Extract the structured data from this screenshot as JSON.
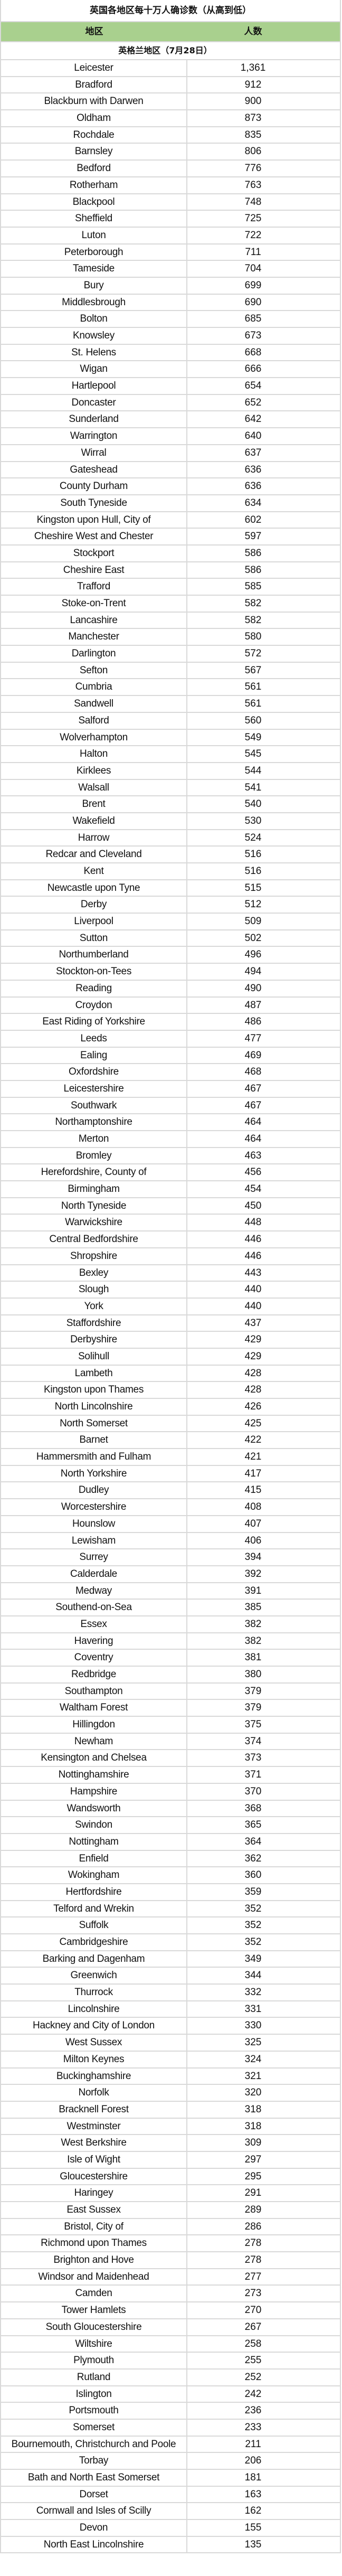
{
  "title": "英国各地区每十万人确诊数（从高到低）",
  "header": {
    "region": "地区",
    "count": "人数"
  },
  "section": "英格兰地区（7月28日）",
  "header_color": "#a9d08e",
  "rows": [
    [
      "Leicester",
      "1,361"
    ],
    [
      "Bradford",
      "912"
    ],
    [
      "Blackburn with Darwen",
      "900"
    ],
    [
      "Oldham",
      "873"
    ],
    [
      "Rochdale",
      "835"
    ],
    [
      "Barnsley",
      "806"
    ],
    [
      "Bedford",
      "776"
    ],
    [
      "Rotherham",
      "763"
    ],
    [
      "Blackpool",
      "748"
    ],
    [
      "Sheffield",
      "725"
    ],
    [
      "Luton",
      "722"
    ],
    [
      "Peterborough",
      "711"
    ],
    [
      "Tameside",
      "704"
    ],
    [
      "Bury",
      "699"
    ],
    [
      "Middlesbrough",
      "690"
    ],
    [
      "Bolton",
      "685"
    ],
    [
      "Knowsley",
      "673"
    ],
    [
      "St. Helens",
      "668"
    ],
    [
      "Wigan",
      "666"
    ],
    [
      "Hartlepool",
      "654"
    ],
    [
      "Doncaster",
      "652"
    ],
    [
      "Sunderland",
      "642"
    ],
    [
      "Warrington",
      "640"
    ],
    [
      "Wirral",
      "637"
    ],
    [
      "Gateshead",
      "636"
    ],
    [
      "County Durham",
      "636"
    ],
    [
      "South Tyneside",
      "634"
    ],
    [
      "Kingston upon Hull, City of",
      "602"
    ],
    [
      "Cheshire West and Chester",
      "597"
    ],
    [
      "Stockport",
      "586"
    ],
    [
      "Cheshire East",
      "586"
    ],
    [
      "Trafford",
      "585"
    ],
    [
      "Stoke-on-Trent",
      "582"
    ],
    [
      "Lancashire",
      "582"
    ],
    [
      "Manchester",
      "580"
    ],
    [
      "Darlington",
      "572"
    ],
    [
      "Sefton",
      "567"
    ],
    [
      "Cumbria",
      "561"
    ],
    [
      "Sandwell",
      "561"
    ],
    [
      "Salford",
      "560"
    ],
    [
      "Wolverhampton",
      "549"
    ],
    [
      "Halton",
      "545"
    ],
    [
      "Kirklees",
      "544"
    ],
    [
      "Walsall",
      "541"
    ],
    [
      "Brent",
      "540"
    ],
    [
      "Wakefield",
      "530"
    ],
    [
      "Harrow",
      "524"
    ],
    [
      "Redcar and Cleveland",
      "516"
    ],
    [
      "Kent",
      "516"
    ],
    [
      "Newcastle upon Tyne",
      "515"
    ],
    [
      "Derby",
      "512"
    ],
    [
      "Liverpool",
      "509"
    ],
    [
      "Sutton",
      "502"
    ],
    [
      "Northumberland",
      "496"
    ],
    [
      "Stockton-on-Tees",
      "494"
    ],
    [
      "Reading",
      "490"
    ],
    [
      "Croydon",
      "487"
    ],
    [
      "East Riding of Yorkshire",
      "486"
    ],
    [
      "Leeds",
      "477"
    ],
    [
      "Ealing",
      "469"
    ],
    [
      "Oxfordshire",
      "468"
    ],
    [
      "Leicestershire",
      "467"
    ],
    [
      "Southwark",
      "467"
    ],
    [
      "Northamptonshire",
      "464"
    ],
    [
      "Merton",
      "464"
    ],
    [
      "Bromley",
      "463"
    ],
    [
      "Herefordshire, County of",
      "456"
    ],
    [
      "Birmingham",
      "454"
    ],
    [
      "North Tyneside",
      "450"
    ],
    [
      "Warwickshire",
      "448"
    ],
    [
      "Central Bedfordshire",
      "446"
    ],
    [
      "Shropshire",
      "446"
    ],
    [
      "Bexley",
      "443"
    ],
    [
      "Slough",
      "440"
    ],
    [
      "York",
      "440"
    ],
    [
      "Staffordshire",
      "437"
    ],
    [
      "Derbyshire",
      "429"
    ],
    [
      "Solihull",
      "429"
    ],
    [
      "Lambeth",
      "428"
    ],
    [
      "Kingston upon Thames",
      "428"
    ],
    [
      "North Lincolnshire",
      "426"
    ],
    [
      "North Somerset",
      "425"
    ],
    [
      "Barnet",
      "422"
    ],
    [
      "Hammersmith and Fulham",
      "421"
    ],
    [
      "North Yorkshire",
      "417"
    ],
    [
      "Dudley",
      "415"
    ],
    [
      "Worcestershire",
      "408"
    ],
    [
      "Hounslow",
      "407"
    ],
    [
      "Lewisham",
      "406"
    ],
    [
      "Surrey",
      "394"
    ],
    [
      "Calderdale",
      "392"
    ],
    [
      "Medway",
      "391"
    ],
    [
      "Southend-on-Sea",
      "385"
    ],
    [
      "Essex",
      "382"
    ],
    [
      "Havering",
      "382"
    ],
    [
      "Coventry",
      "381"
    ],
    [
      "Redbridge",
      "380"
    ],
    [
      "Southampton",
      "379"
    ],
    [
      "Waltham Forest",
      "379"
    ],
    [
      "Hillingdon",
      "375"
    ],
    [
      "Newham",
      "374"
    ],
    [
      "Kensington and Chelsea",
      "373"
    ],
    [
      "Nottinghamshire",
      "371"
    ],
    [
      "Hampshire",
      "370"
    ],
    [
      "Wandsworth",
      "368"
    ],
    [
      "Swindon",
      "365"
    ],
    [
      "Nottingham",
      "364"
    ],
    [
      "Enfield",
      "362"
    ],
    [
      "Wokingham",
      "360"
    ],
    [
      "Hertfordshire",
      "359"
    ],
    [
      "Telford and Wrekin",
      "352"
    ],
    [
      "Suffolk",
      "352"
    ],
    [
      "Cambridgeshire",
      "352"
    ],
    [
      "Barking and Dagenham",
      "349"
    ],
    [
      "Greenwich",
      "344"
    ],
    [
      "Thurrock",
      "332"
    ],
    [
      "Lincolnshire",
      "331"
    ],
    [
      "Hackney and City of London",
      "330"
    ],
    [
      "West Sussex",
      "325"
    ],
    [
      "Milton Keynes",
      "324"
    ],
    [
      "Buckinghamshire",
      "321"
    ],
    [
      "Norfolk",
      "320"
    ],
    [
      "Bracknell Forest",
      "318"
    ],
    [
      "Westminster",
      "318"
    ],
    [
      "West Berkshire",
      "309"
    ],
    [
      "Isle of Wight",
      "297"
    ],
    [
      "Gloucestershire",
      "295"
    ],
    [
      "Haringey",
      "291"
    ],
    [
      "East Sussex",
      "289"
    ],
    [
      "Bristol, City of",
      "286"
    ],
    [
      "Richmond upon Thames",
      "278"
    ],
    [
      "Brighton and Hove",
      "278"
    ],
    [
      "Windsor and Maidenhead",
      "277"
    ],
    [
      "Camden",
      "273"
    ],
    [
      "Tower Hamlets",
      "270"
    ],
    [
      "South Gloucestershire",
      "267"
    ],
    [
      "Wiltshire",
      "258"
    ],
    [
      "Plymouth",
      "255"
    ],
    [
      "Rutland",
      "252"
    ],
    [
      "Islington",
      "242"
    ],
    [
      "Portsmouth",
      "236"
    ],
    [
      "Somerset",
      "233"
    ],
    [
      "Bournemouth, Christchurch and Poole",
      "211"
    ],
    [
      "Torbay",
      "206"
    ],
    [
      "Bath and North East Somerset",
      "181"
    ],
    [
      "Dorset",
      "163"
    ],
    [
      "Cornwall and Isles of Scilly",
      "162"
    ],
    [
      "Devon",
      "155"
    ],
    [
      "North East Lincolnshire",
      "135"
    ]
  ]
}
